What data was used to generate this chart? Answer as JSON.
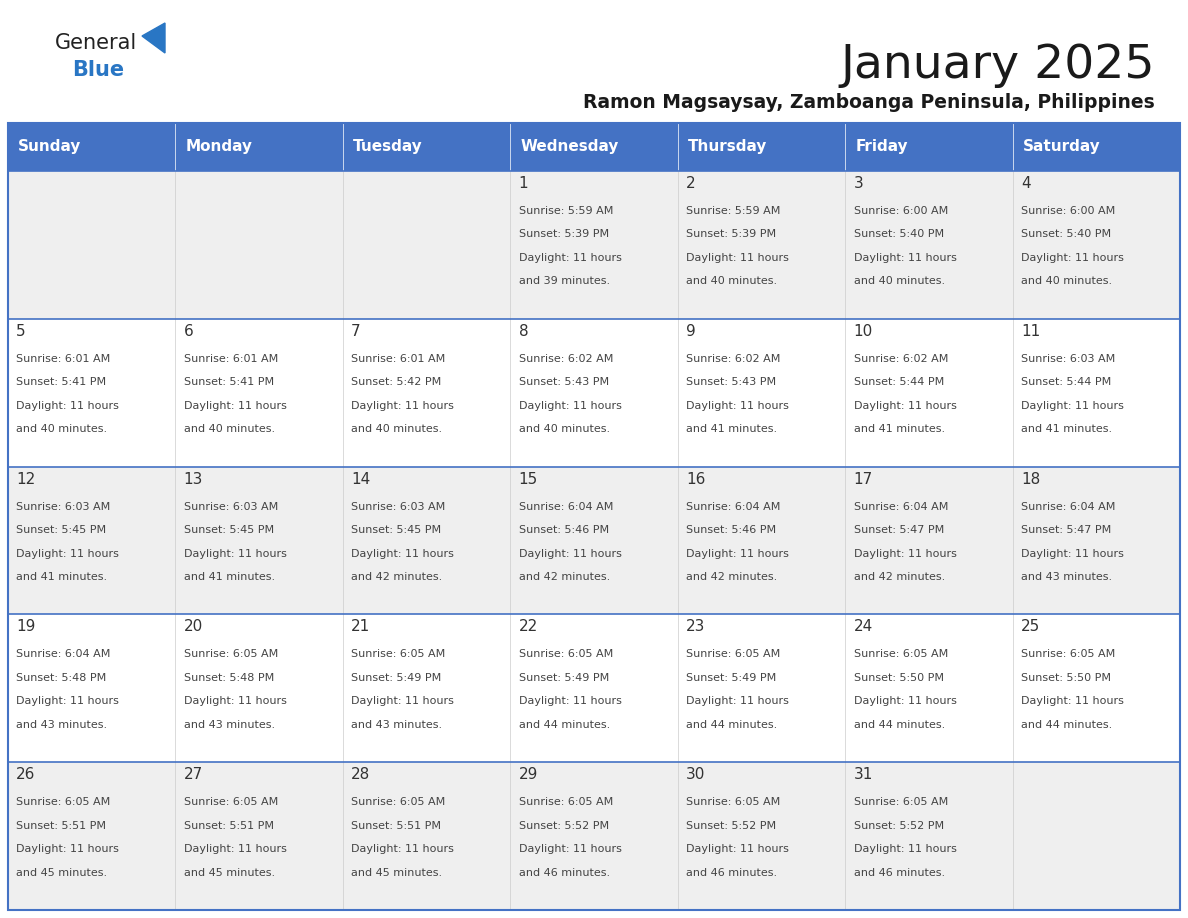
{
  "title": "January 2025",
  "subtitle": "Ramon Magsaysay, Zamboanga Peninsula, Philippines",
  "days_of_week": [
    "Sunday",
    "Monday",
    "Tuesday",
    "Wednesday",
    "Thursday",
    "Friday",
    "Saturday"
  ],
  "header_bg": "#4472C4",
  "header_text": "#FFFFFF",
  "row_bg_even": "#EFEFEF",
  "row_bg_odd": "#FFFFFF",
  "border_color": "#4472C4",
  "day_num_color": "#333333",
  "text_color": "#444444",
  "title_color": "#1a1a1a",
  "calendar_data": [
    [
      null,
      null,
      null,
      {
        "day": 1,
        "sunrise": "5:59 AM",
        "sunset": "5:39 PM",
        "daylight": "11 hours and 39 minutes."
      },
      {
        "day": 2,
        "sunrise": "5:59 AM",
        "sunset": "5:39 PM",
        "daylight": "11 hours and 40 minutes."
      },
      {
        "day": 3,
        "sunrise": "6:00 AM",
        "sunset": "5:40 PM",
        "daylight": "11 hours and 40 minutes."
      },
      {
        "day": 4,
        "sunrise": "6:00 AM",
        "sunset": "5:40 PM",
        "daylight": "11 hours and 40 minutes."
      }
    ],
    [
      {
        "day": 5,
        "sunrise": "6:01 AM",
        "sunset": "5:41 PM",
        "daylight": "11 hours and 40 minutes."
      },
      {
        "day": 6,
        "sunrise": "6:01 AM",
        "sunset": "5:41 PM",
        "daylight": "11 hours and 40 minutes."
      },
      {
        "day": 7,
        "sunrise": "6:01 AM",
        "sunset": "5:42 PM",
        "daylight": "11 hours and 40 minutes."
      },
      {
        "day": 8,
        "sunrise": "6:02 AM",
        "sunset": "5:43 PM",
        "daylight": "11 hours and 40 minutes."
      },
      {
        "day": 9,
        "sunrise": "6:02 AM",
        "sunset": "5:43 PM",
        "daylight": "11 hours and 41 minutes."
      },
      {
        "day": 10,
        "sunrise": "6:02 AM",
        "sunset": "5:44 PM",
        "daylight": "11 hours and 41 minutes."
      },
      {
        "day": 11,
        "sunrise": "6:03 AM",
        "sunset": "5:44 PM",
        "daylight": "11 hours and 41 minutes."
      }
    ],
    [
      {
        "day": 12,
        "sunrise": "6:03 AM",
        "sunset": "5:45 PM",
        "daylight": "11 hours and 41 minutes."
      },
      {
        "day": 13,
        "sunrise": "6:03 AM",
        "sunset": "5:45 PM",
        "daylight": "11 hours and 41 minutes."
      },
      {
        "day": 14,
        "sunrise": "6:03 AM",
        "sunset": "5:45 PM",
        "daylight": "11 hours and 42 minutes."
      },
      {
        "day": 15,
        "sunrise": "6:04 AM",
        "sunset": "5:46 PM",
        "daylight": "11 hours and 42 minutes."
      },
      {
        "day": 16,
        "sunrise": "6:04 AM",
        "sunset": "5:46 PM",
        "daylight": "11 hours and 42 minutes."
      },
      {
        "day": 17,
        "sunrise": "6:04 AM",
        "sunset": "5:47 PM",
        "daylight": "11 hours and 42 minutes."
      },
      {
        "day": 18,
        "sunrise": "6:04 AM",
        "sunset": "5:47 PM",
        "daylight": "11 hours and 43 minutes."
      }
    ],
    [
      {
        "day": 19,
        "sunrise": "6:04 AM",
        "sunset": "5:48 PM",
        "daylight": "11 hours and 43 minutes."
      },
      {
        "day": 20,
        "sunrise": "6:05 AM",
        "sunset": "5:48 PM",
        "daylight": "11 hours and 43 minutes."
      },
      {
        "day": 21,
        "sunrise": "6:05 AM",
        "sunset": "5:49 PM",
        "daylight": "11 hours and 43 minutes."
      },
      {
        "day": 22,
        "sunrise": "6:05 AM",
        "sunset": "5:49 PM",
        "daylight": "11 hours and 44 minutes."
      },
      {
        "day": 23,
        "sunrise": "6:05 AM",
        "sunset": "5:49 PM",
        "daylight": "11 hours and 44 minutes."
      },
      {
        "day": 24,
        "sunrise": "6:05 AM",
        "sunset": "5:50 PM",
        "daylight": "11 hours and 44 minutes."
      },
      {
        "day": 25,
        "sunrise": "6:05 AM",
        "sunset": "5:50 PM",
        "daylight": "11 hours and 44 minutes."
      }
    ],
    [
      {
        "day": 26,
        "sunrise": "6:05 AM",
        "sunset": "5:51 PM",
        "daylight": "11 hours and 45 minutes."
      },
      {
        "day": 27,
        "sunrise": "6:05 AM",
        "sunset": "5:51 PM",
        "daylight": "11 hours and 45 minutes."
      },
      {
        "day": 28,
        "sunrise": "6:05 AM",
        "sunset": "5:51 PM",
        "daylight": "11 hours and 45 minutes."
      },
      {
        "day": 29,
        "sunrise": "6:05 AM",
        "sunset": "5:52 PM",
        "daylight": "11 hours and 46 minutes."
      },
      {
        "day": 30,
        "sunrise": "6:05 AM",
        "sunset": "5:52 PM",
        "daylight": "11 hours and 46 minutes."
      },
      {
        "day": 31,
        "sunrise": "6:05 AM",
        "sunset": "5:52 PM",
        "daylight": "11 hours and 46 minutes."
      },
      null
    ]
  ]
}
